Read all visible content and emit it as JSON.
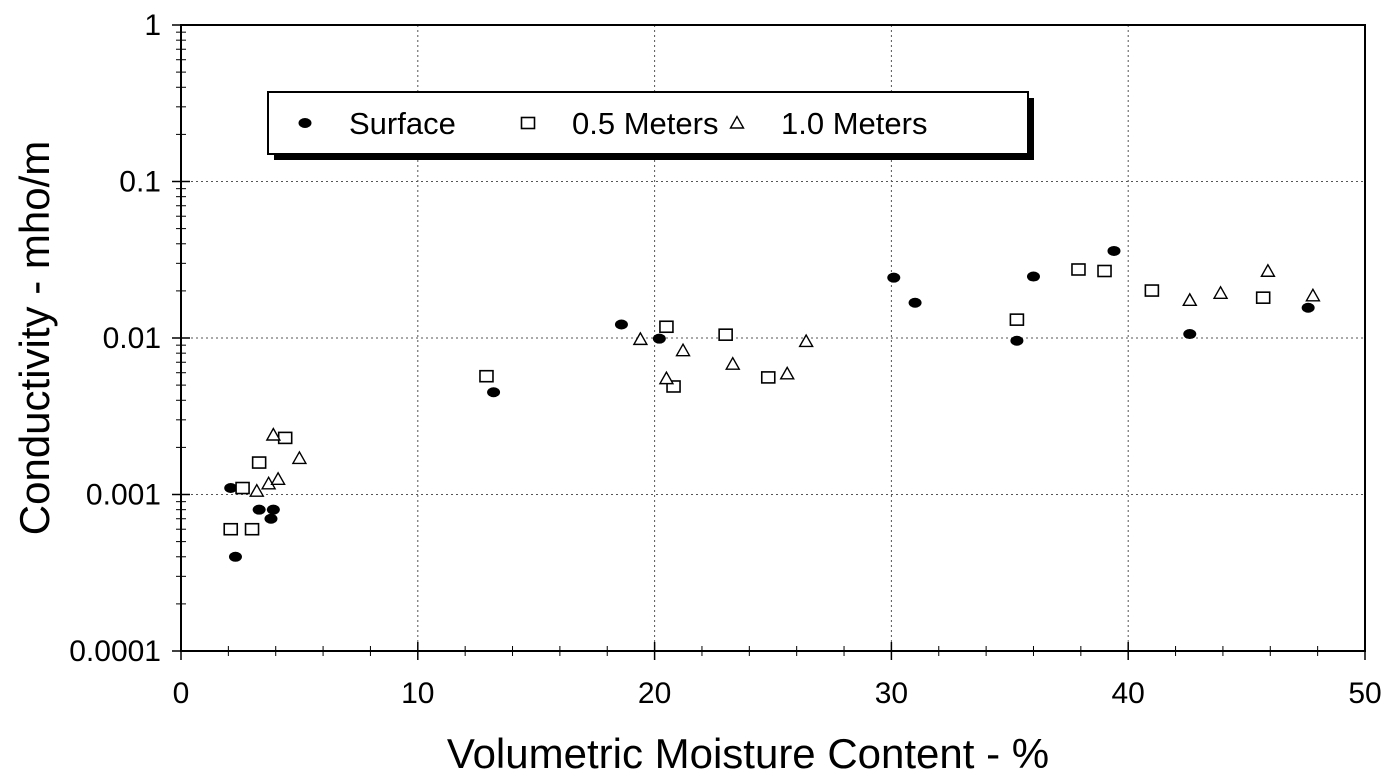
{
  "chart_data": {
    "type": "scatter",
    "xlabel": "Volumetric Moisture Content - %",
    "ylabel": "Conductivity - mho/m",
    "xlim": [
      0,
      50
    ],
    "ylim": [
      0.0001,
      1
    ],
    "y_scale": "log",
    "x_ticks": [
      "0",
      "10",
      "20",
      "30",
      "40",
      "50"
    ],
    "y_ticks": [
      "0.0001",
      "0.001",
      "0.01",
      "0.1",
      "1"
    ],
    "grid": "dotted",
    "legend_position": "top-left",
    "series": [
      {
        "name": "Surface",
        "marker": "filled-ellipse",
        "points": [
          [
            2.1,
            0.0011
          ],
          [
            2.3,
            0.0004
          ],
          [
            3.3,
            0.0008
          ],
          [
            3.9,
            0.0008
          ],
          [
            3.8,
            0.0007
          ],
          [
            13.2,
            0.0045
          ],
          [
            18.6,
            0.0122
          ],
          [
            20.2,
            0.0099
          ],
          [
            30.1,
            0.0243
          ],
          [
            31.0,
            0.0168
          ],
          [
            35.3,
            0.0096
          ],
          [
            36.0,
            0.0247
          ],
          [
            39.4,
            0.036
          ],
          [
            42.6,
            0.0106
          ],
          [
            47.6,
            0.0156
          ]
        ]
      },
      {
        "name": "0.5 Meters",
        "marker": "open-square",
        "points": [
          [
            2.1,
            0.0006
          ],
          [
            2.6,
            0.0011
          ],
          [
            3.0,
            0.0006
          ],
          [
            3.3,
            0.0016
          ],
          [
            4.4,
            0.0023
          ],
          [
            12.9,
            0.0057
          ],
          [
            20.5,
            0.0118
          ],
          [
            20.8,
            0.0049
          ],
          [
            23.0,
            0.0105
          ],
          [
            24.8,
            0.0056
          ],
          [
            35.3,
            0.0131
          ],
          [
            37.9,
            0.0274
          ],
          [
            39.0,
            0.0268
          ],
          [
            41.0,
            0.0201
          ],
          [
            45.7,
            0.0181
          ]
        ]
      },
      {
        "name": "1.0 Meters",
        "marker": "open-triangle",
        "points": [
          [
            3.2,
            0.00105
          ],
          [
            3.7,
            0.00117
          ],
          [
            3.9,
            0.0024
          ],
          [
            4.1,
            0.00125
          ],
          [
            5.0,
            0.0017
          ],
          [
            19.4,
            0.0098
          ],
          [
            20.5,
            0.0055
          ],
          [
            21.2,
            0.0083
          ],
          [
            23.3,
            0.0068
          ],
          [
            25.6,
            0.0059
          ],
          [
            26.4,
            0.0095
          ],
          [
            42.6,
            0.0174
          ],
          [
            43.9,
            0.0193
          ],
          [
            45.9,
            0.0267
          ],
          [
            47.8,
            0.0186
          ]
        ]
      }
    ]
  }
}
